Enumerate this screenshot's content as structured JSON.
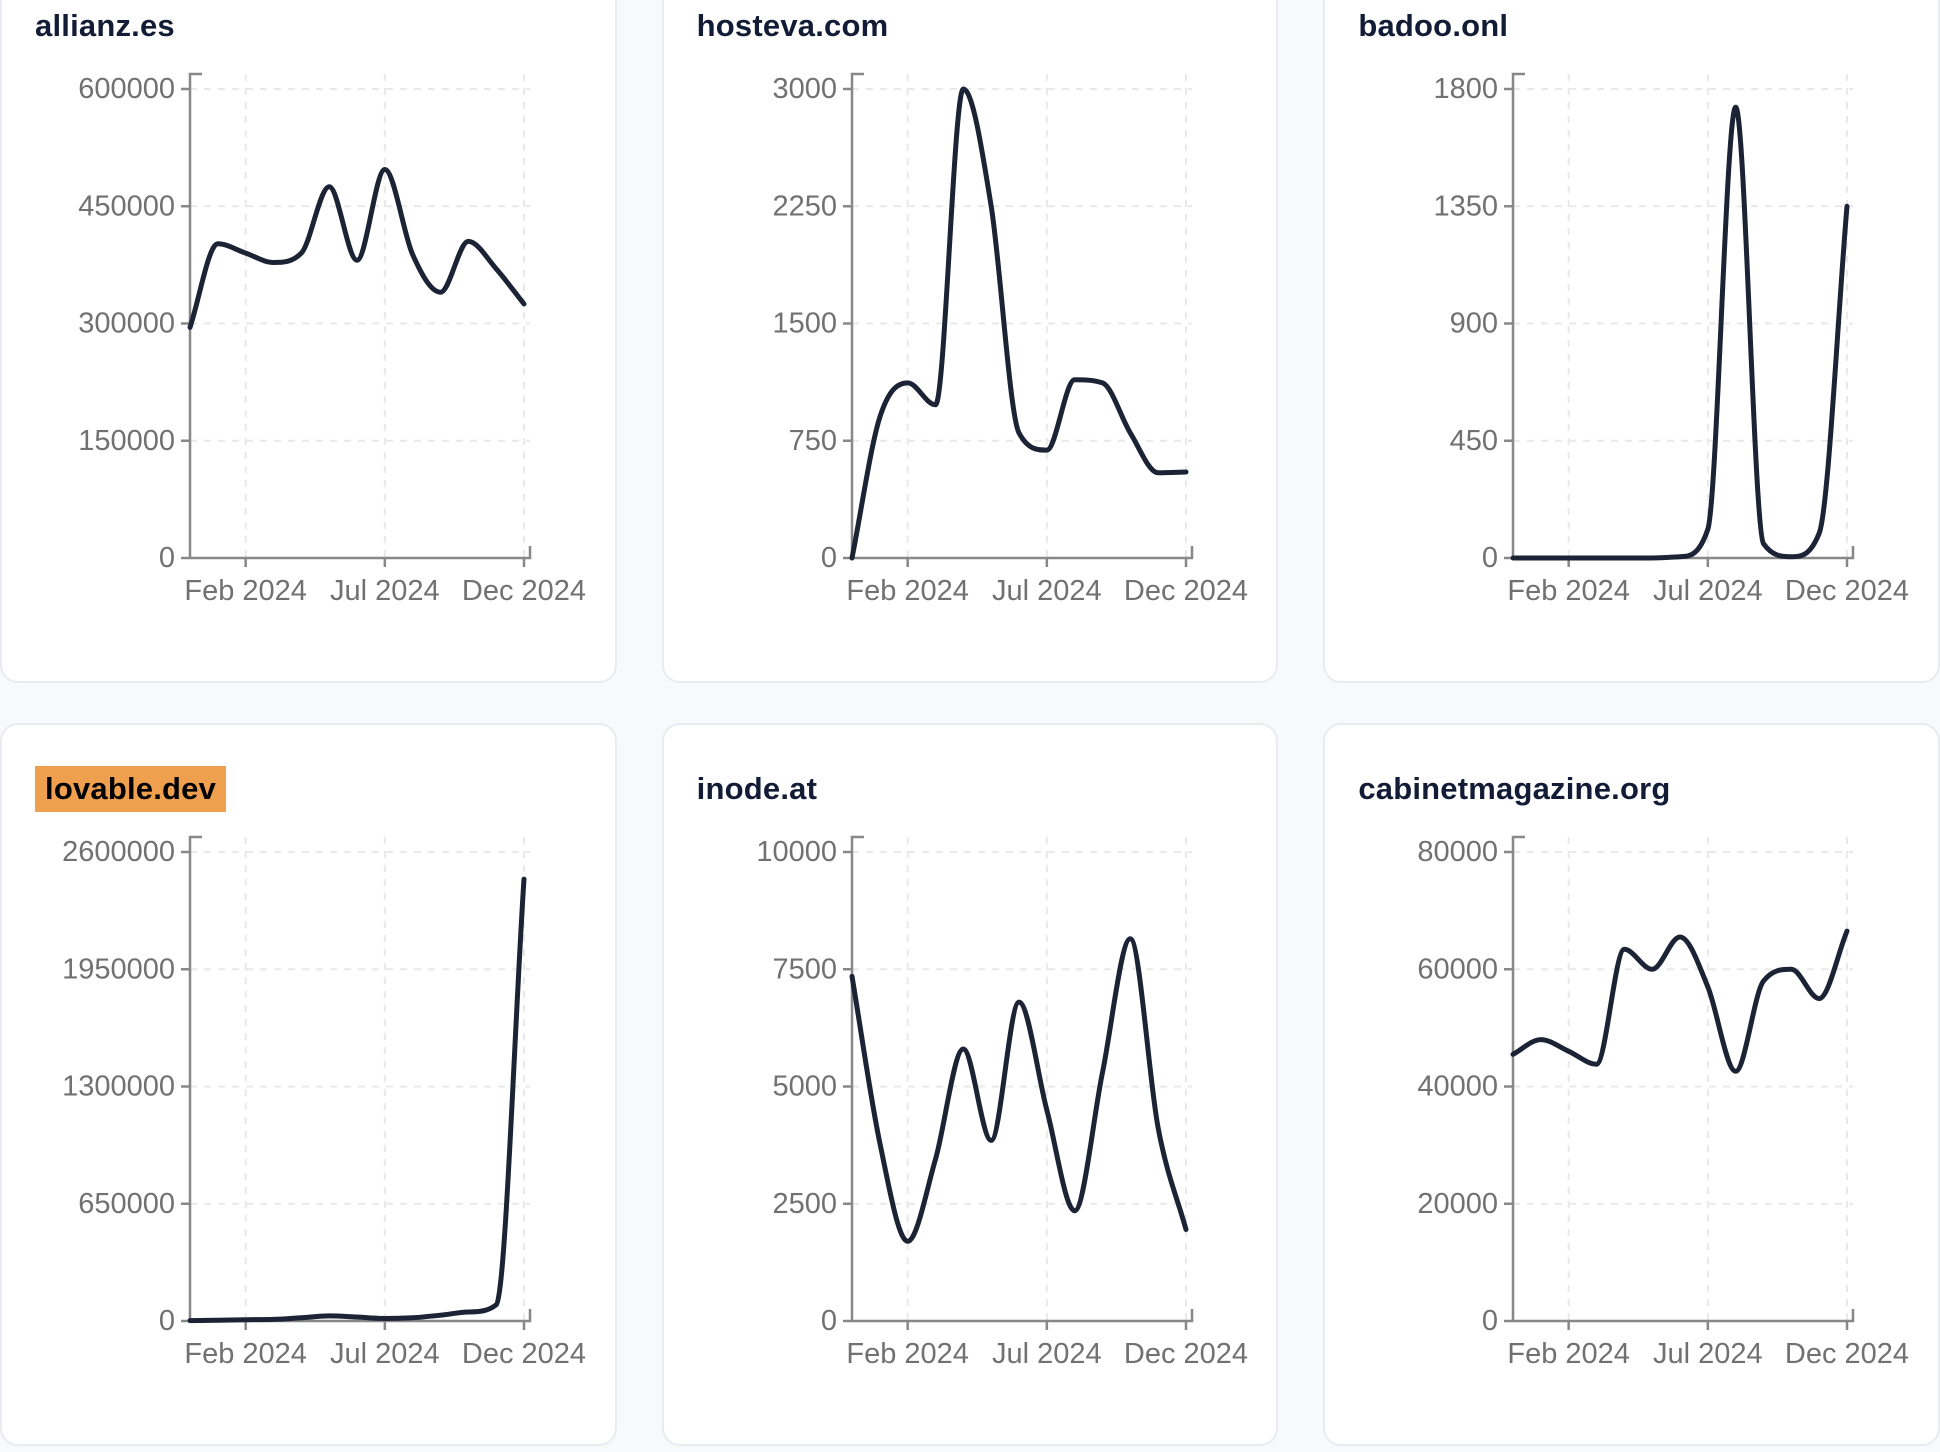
{
  "page": {
    "background": "#f8f9fb",
    "card_background": "#ffffff",
    "card_border_color": "#e9ebf0",
    "highlight_color": "#efa04e",
    "line_color": "#1b2335",
    "axis_color": "#888888",
    "tick_label_color": "#717171",
    "title_color": "#131c36",
    "grid_color": "#e9e9e9"
  },
  "chart_data": [
    {
      "type": "line",
      "title": "allianz.es",
      "highlighted": false,
      "x_tick_labels": [
        "Feb 2024",
        "Jul 2024",
        "Dec 2024"
      ],
      "x_tick_indices": [
        2,
        7,
        12
      ],
      "x_point_count": 13,
      "y_ticks": [
        0,
        150000,
        300000,
        450000,
        600000
      ],
      "ylim": [
        0,
        600000
      ],
      "values": [
        295000,
        402000,
        390000,
        378000,
        390000,
        475000,
        381000,
        497000,
        388000,
        340000,
        405000,
        370000,
        325000
      ],
      "grid": "dashed",
      "legend": "none"
    },
    {
      "type": "line",
      "title": "hosteva.com",
      "highlighted": false,
      "x_tick_labels": [
        "Feb 2024",
        "Jul 2024",
        "Dec 2024"
      ],
      "x_tick_indices": [
        2,
        7,
        12
      ],
      "x_point_count": 13,
      "y_ticks": [
        0,
        750,
        1500,
        2250,
        3000
      ],
      "ylim": [
        0,
        3000
      ],
      "values": [
        0,
        900,
        1120,
        980,
        3000,
        2250,
        800,
        690,
        1140,
        1120,
        800,
        545,
        550
      ],
      "grid": "dashed",
      "legend": "none"
    },
    {
      "type": "line",
      "title": "badoo.onl",
      "highlighted": false,
      "x_tick_labels": [
        "Feb 2024",
        "Jul 2024",
        "Dec 2024"
      ],
      "x_tick_indices": [
        2,
        7,
        12
      ],
      "x_point_count": 13,
      "y_ticks": [
        0,
        450,
        900,
        1350,
        1800
      ],
      "ylim": [
        0,
        1800
      ],
      "values": [
        0,
        0,
        0,
        0,
        0,
        0,
        5,
        110,
        1730,
        55,
        5,
        95,
        1350
      ],
      "grid": "dashed",
      "legend": "none"
    },
    {
      "type": "line",
      "title": "lovable.dev",
      "highlighted": true,
      "x_tick_labels": [
        "Feb 2024",
        "Jul 2024",
        "Dec 2024"
      ],
      "x_tick_indices": [
        2,
        7,
        12
      ],
      "x_point_count": 13,
      "y_ticks": [
        0,
        650000,
        1300000,
        1950000,
        2600000
      ],
      "ylim": [
        0,
        2600000
      ],
      "values": [
        2000,
        4000,
        7000,
        9000,
        18000,
        28000,
        22000,
        14000,
        18000,
        32000,
        50000,
        90000,
        2450000
      ],
      "grid": "dashed",
      "legend": "none"
    },
    {
      "type": "line",
      "title": "inode.at",
      "highlighted": false,
      "x_tick_labels": [
        "Feb 2024",
        "Jul 2024",
        "Dec 2024"
      ],
      "x_tick_indices": [
        2,
        7,
        12
      ],
      "x_point_count": 13,
      "y_ticks": [
        0,
        2500,
        5000,
        7500,
        10000
      ],
      "ylim": [
        0,
        10000
      ],
      "values": [
        7350,
        3800,
        1700,
        3450,
        5800,
        3850,
        6800,
        4500,
        2350,
        5300,
        8150,
        4110,
        1950
      ],
      "grid": "dashed",
      "legend": "none"
    },
    {
      "type": "line",
      "title": "cabinetmagazine.org",
      "highlighted": false,
      "x_tick_labels": [
        "Feb 2024",
        "Jul 2024",
        "Dec 2024"
      ],
      "x_tick_indices": [
        2,
        7,
        12
      ],
      "x_point_count": 13,
      "y_ticks": [
        0,
        20000,
        40000,
        60000,
        80000
      ],
      "ylim": [
        0,
        80000
      ],
      "values": [
        45500,
        48000,
        46000,
        43800,
        63400,
        60000,
        65500,
        57000,
        42600,
        58000,
        60000,
        55000,
        66500
      ],
      "grid": "dashed",
      "legend": "none"
    }
  ]
}
